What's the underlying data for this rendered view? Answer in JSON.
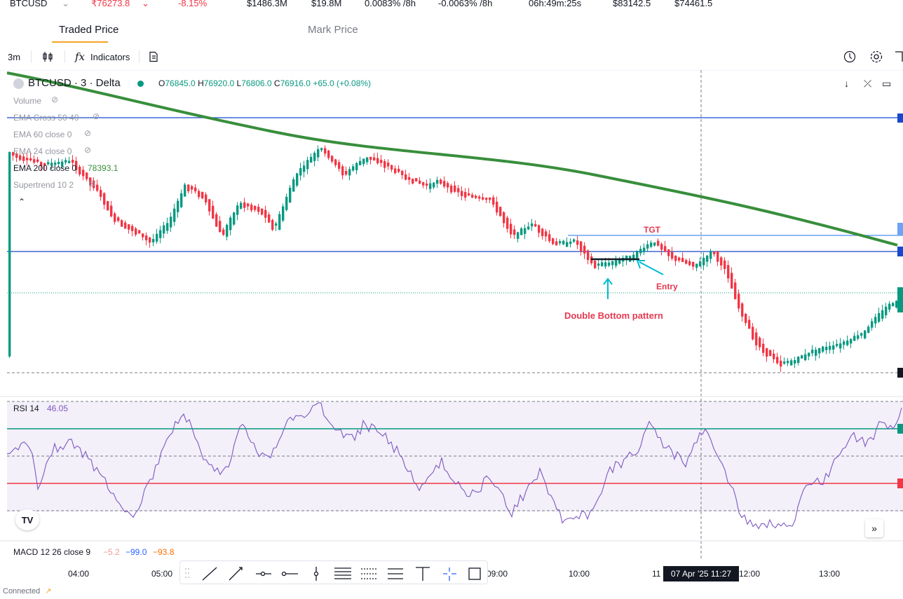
{
  "top_stats": {
    "symbol": "BTCUSD",
    "price": "₹76273.8",
    "change": "-8.15%",
    "volume": "$1486.3M",
    "oi": "$19.8M",
    "funding_1": "0.0083% /8h",
    "funding_2": "-0.0063% /8h",
    "countdown": "06h:49m:25s",
    "high": "$83142.5",
    "low": "$74461.5"
  },
  "tabs": {
    "traded_price": "Traded Price",
    "mark_price": "Mark Price"
  },
  "toolbar": {
    "interval": "3m",
    "indicators_label": "Indicators"
  },
  "legend": {
    "symbol_title": "BTCUSD · 3 · Delta",
    "o_label": "O",
    "o": "76845.0",
    "h_label": "H",
    "h": "76920.0",
    "l_label": "L",
    "l": "76806.0",
    "c_label": "C",
    "c": "76916.0",
    "change": "+65.0 (+0.08%)",
    "volume": "Volume",
    "ema_cross": "EMA Cross 50 40",
    "ema60": "EMA 60 close 0",
    "ema24": "EMA 24 close 0",
    "ema200": "EMA 200 close 0",
    "ema200_value": "78393.1",
    "supertrend": "Supertrend 10 2"
  },
  "annotations": {
    "tgt": "TGT",
    "entry": "Entry",
    "pattern": "Double Bottom pattern"
  },
  "rsi": {
    "label": "RSI 14",
    "value": "46.05"
  },
  "macd": {
    "label": "MACD 12 26 close 9",
    "v1": "−5.2",
    "v2": "−99.0",
    "v3": "−93.8"
  },
  "time_axis": {
    "ticks": [
      "04:00",
      "05:00",
      "09:00",
      "10:00",
      "11",
      "12:00",
      "13:00"
    ],
    "crosshair_label": "07 Apr '25   11:27"
  },
  "footer": {
    "connected": "Connected"
  },
  "colors": {
    "up": "#089981",
    "down": "#f23645",
    "ema200": "#388e3c",
    "rsi": "#7e57c2",
    "annotation": "#e53950",
    "arrow": "#00bcd4"
  }
}
